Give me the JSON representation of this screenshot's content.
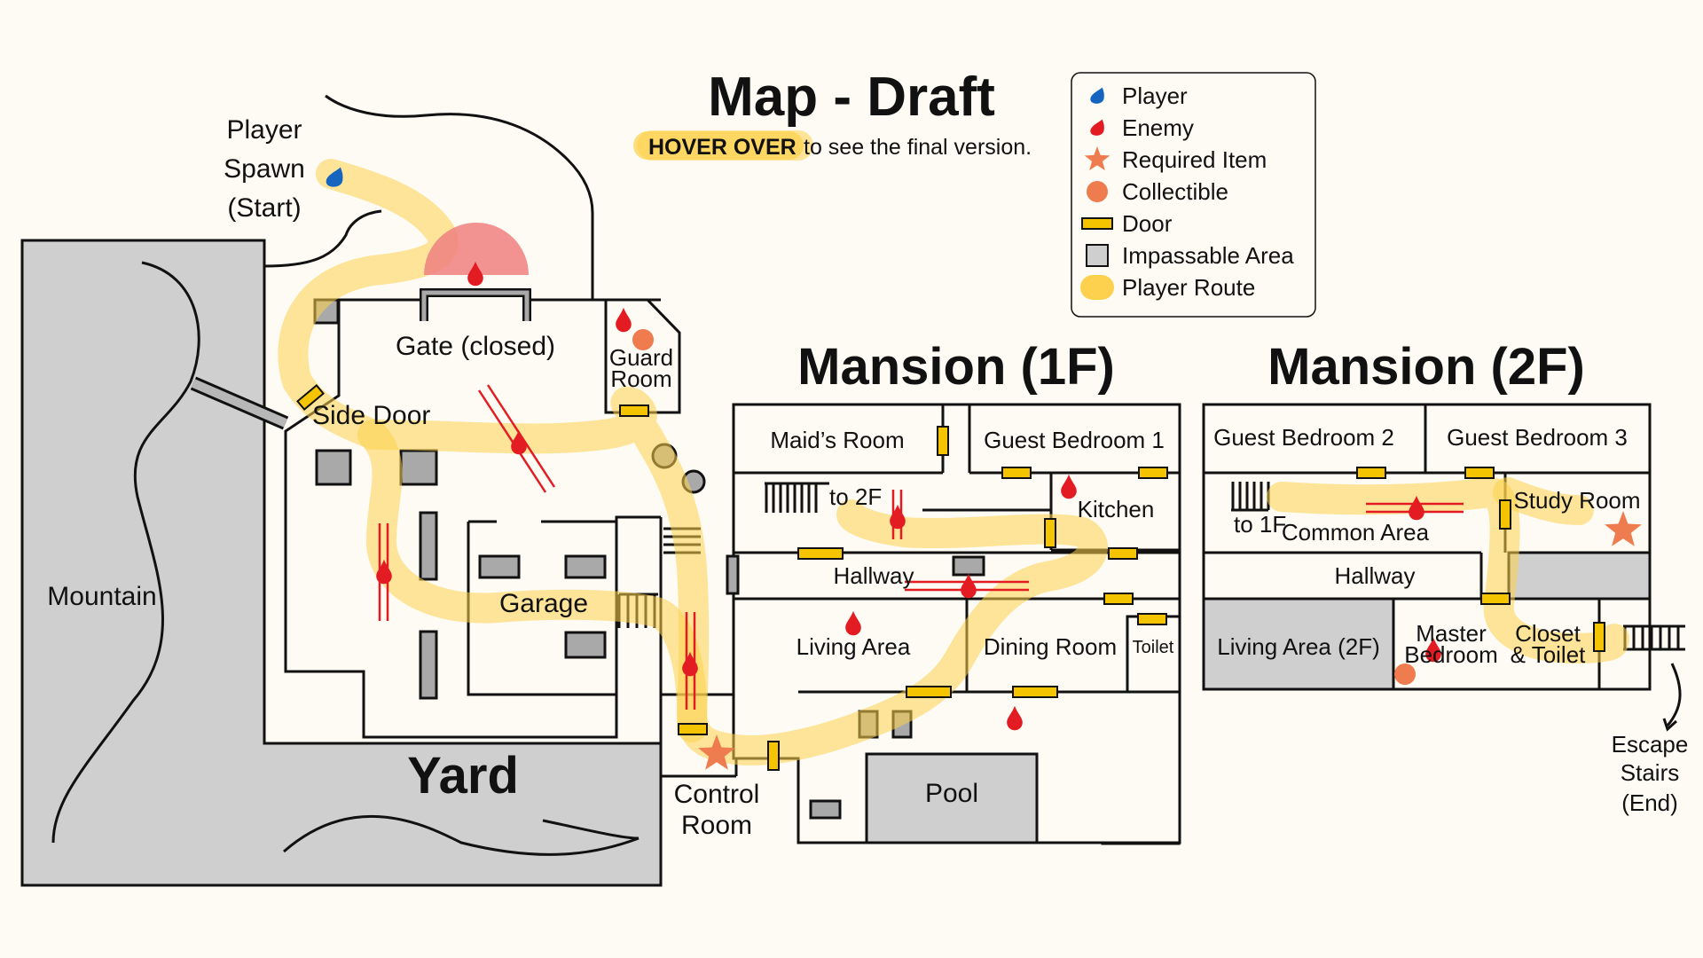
{
  "title": "Map - Draft",
  "hint": {
    "highlight": "HOVER OVER",
    "rest": "to see the final version."
  },
  "colors": {
    "player": "#1565c0",
    "enemy": "#e31b23",
    "item": "#ef7c4e",
    "door": "#f5c400",
    "impassable": "#cfcfcf",
    "route": "#fdd14d",
    "vision": "#f08080",
    "obstacle": "#a9a9a9"
  },
  "legend": [
    {
      "icon": "player-icon",
      "label": "Player"
    },
    {
      "icon": "enemy-icon",
      "label": "Enemy"
    },
    {
      "icon": "star-icon",
      "label": "Required Item"
    },
    {
      "icon": "circle-icon",
      "label": "Collectible"
    },
    {
      "icon": "door-icon",
      "label": "Door"
    },
    {
      "icon": "impassable-icon",
      "label": "Impassable Area"
    },
    {
      "icon": "route-icon",
      "label": "Player Route"
    }
  ],
  "sections": {
    "mansion1": "Mansion (1F)",
    "mansion2": "Mansion (2F)",
    "yard": "Yard"
  },
  "labels": {
    "spawn1": "Player",
    "spawn2": "Spawn",
    "spawn3": "(Start)",
    "gate": "Gate (closed)",
    "guard1": "Guard",
    "guard2": "Room",
    "side_door": "Side Door",
    "mountain": "Mountain",
    "garage": "Garage",
    "control1": "Control",
    "control2": "Room",
    "maids_room": "Maid’s Room",
    "guest1": "Guest Bedroom 1",
    "to2f": "to 2F",
    "kitchen": "Kitchen",
    "hallway1": "Hallway",
    "living1": "Living Area",
    "dining": "Dining Room",
    "toilet": "Toilet",
    "pool": "Pool",
    "guest2": "Guest Bedroom 2",
    "guest3": "Guest Bedroom 3",
    "to1f": "to 1F",
    "common": "Common Area",
    "study": "Study Room",
    "hallway2": "Hallway",
    "living2": "Living Area (2F)",
    "master1": "Master",
    "master2": "Bedroom",
    "closet1": "Closet",
    "closet2": "& Toilet",
    "escape1": "Escape",
    "escape2": "Stairs",
    "escape3": "(End)"
  }
}
